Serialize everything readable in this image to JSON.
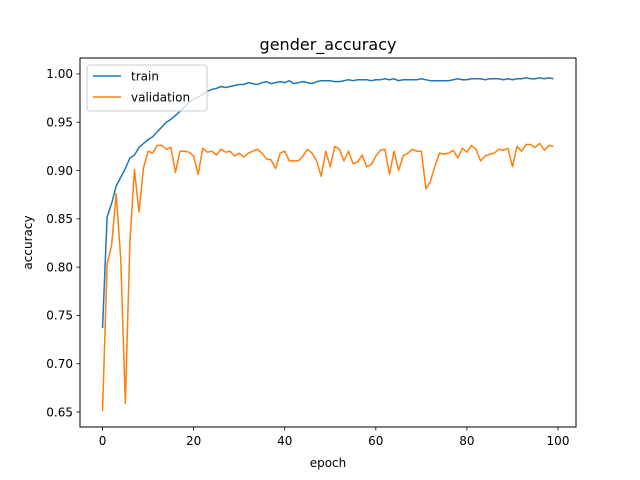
{
  "chart_data": {
    "type": "line",
    "title": "gender_accuracy",
    "xlabel": "epoch",
    "ylabel": "accuracy",
    "xlim": [
      -4.95,
      103.95
    ],
    "ylim": [
      0.6345,
      1.0165
    ],
    "xticks": [
      0,
      20,
      40,
      60,
      80,
      100
    ],
    "xtick_labels": [
      "0",
      "20",
      "40",
      "60",
      "80",
      "100"
    ],
    "yticks": [
      0.65,
      0.7,
      0.75,
      0.8,
      0.85,
      0.9,
      0.95,
      1.0
    ],
    "ytick_labels": [
      "0.65",
      "0.70",
      "0.75",
      "0.80",
      "0.85",
      "0.90",
      "0.95",
      "1.00"
    ],
    "grid": false,
    "legend_position": "top-left",
    "series": [
      {
        "name": "train",
        "color": "#1f77b4",
        "values": [
          0.737,
          0.852,
          0.866,
          0.884,
          0.893,
          0.902,
          0.913,
          0.916,
          0.924,
          0.928,
          0.932,
          0.935,
          0.94,
          0.945,
          0.95,
          0.953,
          0.957,
          0.961,
          0.966,
          0.97,
          0.974,
          0.976,
          0.979,
          0.982,
          0.984,
          0.985,
          0.987,
          0.986,
          0.987,
          0.988,
          0.989,
          0.989,
          0.991,
          0.99,
          0.989,
          0.991,
          0.992,
          0.99,
          0.991,
          0.992,
          0.991,
          0.993,
          0.99,
          0.991,
          0.992,
          0.991,
          0.99,
          0.992,
          0.993,
          0.993,
          0.993,
          0.992,
          0.992,
          0.993,
          0.994,
          0.993,
          0.994,
          0.994,
          0.994,
          0.993,
          0.994,
          0.994,
          0.995,
          0.994,
          0.995,
          0.993,
          0.994,
          0.994,
          0.994,
          0.994,
          0.995,
          0.994,
          0.993,
          0.993,
          0.993,
          0.993,
          0.993,
          0.994,
          0.995,
          0.994,
          0.994,
          0.995,
          0.995,
          0.995,
          0.994,
          0.995,
          0.995,
          0.995,
          0.994,
          0.995,
          0.994,
          0.995,
          0.995,
          0.996,
          0.995,
          0.995,
          0.996,
          0.995,
          0.996,
          0.995
        ]
      },
      {
        "name": "validation",
        "color": "#ff7f0e",
        "values": [
          0.651,
          0.803,
          0.823,
          0.876,
          0.808,
          0.659,
          0.825,
          0.901,
          0.857,
          0.903,
          0.92,
          0.918,
          0.926,
          0.926,
          0.922,
          0.924,
          0.898,
          0.92,
          0.92,
          0.919,
          0.915,
          0.896,
          0.923,
          0.919,
          0.92,
          0.916,
          0.922,
          0.919,
          0.92,
          0.915,
          0.918,
          0.914,
          0.918,
          0.92,
          0.922,
          0.918,
          0.912,
          0.911,
          0.902,
          0.918,
          0.92,
          0.91,
          0.91,
          0.91,
          0.915,
          0.922,
          0.918,
          0.91,
          0.894,
          0.92,
          0.904,
          0.925,
          0.922,
          0.91,
          0.92,
          0.907,
          0.909,
          0.916,
          0.904,
          0.906,
          0.915,
          0.921,
          0.922,
          0.896,
          0.92,
          0.9,
          0.915,
          0.918,
          0.922,
          0.92,
          0.92,
          0.881,
          0.889,
          0.905,
          0.918,
          0.917,
          0.918,
          0.921,
          0.913,
          0.923,
          0.919,
          0.926,
          0.922,
          0.91,
          0.915,
          0.917,
          0.918,
          0.922,
          0.921,
          0.923,
          0.904,
          0.925,
          0.92,
          0.927,
          0.927,
          0.924,
          0.928,
          0.921,
          0.926,
          0.925
        ]
      }
    ]
  }
}
